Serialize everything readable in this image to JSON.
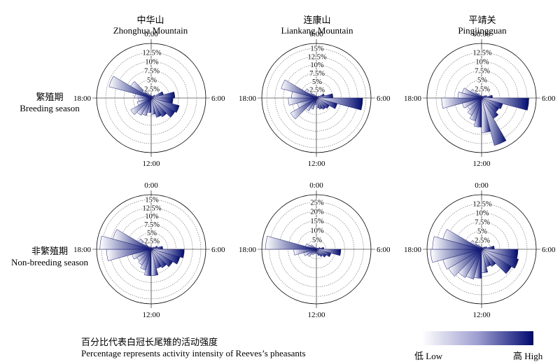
{
  "columns": [
    {
      "cn": "中华山",
      "en": "Zhonghua Mountain"
    },
    {
      "cn": "连康山",
      "en": "Liankang Mountain"
    },
    {
      "cn": "平靖关",
      "en": "Pingjingguan"
    }
  ],
  "rows": [
    {
      "cn": "繁殖期",
      "en": "Breeding season"
    },
    {
      "cn": "非繁殖期",
      "en": "Non-breeding season"
    }
  ],
  "caption": {
    "cn": "百分比代表白冠长尾雉的活动强度",
    "en": "Percentage represents activity intensity of Reeves’s pheasants"
  },
  "legend": {
    "low": "低 Low",
    "high": "高 High",
    "colors": [
      "#ffffff",
      "#000a6e"
    ]
  },
  "chart_data": [
    {
      "type": "polar-bar",
      "panel": "Zhonghua Mountain – Breeding season",
      "hour_labels": {
        "top": "0:00",
        "right": "6:00",
        "bottom": "12:00",
        "left": "18:00"
      },
      "rmax": 15,
      "ring_labels": [
        "2.5%",
        "5%",
        "7.5%",
        "10%",
        "12.5%"
      ],
      "hours": [
        0,
        1,
        2,
        3,
        4,
        5,
        6,
        7,
        8,
        9,
        10,
        11,
        12,
        13,
        14,
        15,
        16,
        17,
        18,
        19,
        20,
        21,
        22,
        23
      ],
      "values": [
        0.6,
        0.5,
        0.7,
        1.2,
        3.5,
        6.5,
        6.0,
        8.0,
        7.5,
        6.0,
        5.5,
        4.5,
        4.0,
        5.0,
        5.5,
        6.5,
        4.0,
        3.5,
        4.5,
        12.0,
        6.5,
        2.0,
        1.0,
        0.7
      ]
    },
    {
      "type": "polar-bar",
      "panel": "Liankang Mountain – Breeding season",
      "hour_labels": {
        "top": "0:00",
        "right": "6:00",
        "bottom": "12:00",
        "left": "18:00"
      },
      "rmax": 16.5,
      "ring_labels": [
        "2.5%",
        "5%",
        "7.5%",
        "10%",
        "12.5%",
        "15%"
      ],
      "hours": [
        0,
        1,
        2,
        3,
        4,
        5,
        6,
        7,
        8,
        9,
        10,
        11,
        12,
        13,
        14,
        15,
        16,
        17,
        18,
        19,
        20,
        21,
        22,
        23
      ],
      "values": [
        0.5,
        0.5,
        0.6,
        1.0,
        2.5,
        5.0,
        14.0,
        6.5,
        4.5,
        4.0,
        3.5,
        3.0,
        2.0,
        3.5,
        4.5,
        9.0,
        6.0,
        8.5,
        7.5,
        11.0,
        4.0,
        1.5,
        0.8,
        0.5
      ]
    },
    {
      "type": "polar-bar",
      "panel": "Pingjingguan – Breeding season",
      "hour_labels": {
        "top": "00:00",
        "right": "6:00",
        "bottom": "12:00",
        "left": "18:00"
      },
      "rmax": 15,
      "ring_labels": [
        "2.5%",
        "5%",
        "7.5%",
        "10%",
        "12.5%"
      ],
      "hours": [
        0,
        1,
        2,
        3,
        4,
        5,
        6,
        7,
        8,
        9,
        10,
        11,
        12,
        13,
        14,
        15,
        16,
        17,
        18,
        19,
        20,
        21,
        22,
        23
      ],
      "values": [
        0.5,
        0.5,
        0.6,
        1.0,
        1.5,
        3.0,
        13.0,
        6.0,
        5.5,
        6.5,
        13.5,
        9.5,
        8.0,
        6.5,
        5.5,
        4.5,
        5.5,
        11.0,
        6.5,
        5.5,
        3.5,
        1.5,
        0.8,
        0.5
      ]
    },
    {
      "type": "polar-bar",
      "panel": "Zhonghua Mountain – Non-breeding season",
      "hour_labels": {
        "top": "0:00",
        "right": "6:00",
        "bottom": "12:00",
        "left": "18:00"
      },
      "rmax": 16.5,
      "ring_labels": [
        "2.5%",
        "5%",
        "7.5%",
        "10%",
        "12.5%",
        "15%"
      ],
      "hours": [
        0,
        1,
        2,
        3,
        4,
        5,
        6,
        7,
        8,
        9,
        10,
        11,
        12,
        13,
        14,
        15,
        16,
        17,
        18,
        19,
        20,
        21,
        22,
        23
      ],
      "values": [
        0.5,
        0.5,
        0.6,
        1.0,
        2.0,
        3.5,
        10.0,
        9.0,
        7.5,
        6.5,
        6.0,
        8.0,
        8.0,
        6.5,
        5.5,
        5.0,
        6.0,
        13.5,
        15.5,
        12.0,
        4.5,
        1.0,
        0.7,
        0.5
      ]
    },
    {
      "type": "polar-bar",
      "panel": "Liankang Mountain – Non-breeding season",
      "hour_labels": {
        "top": "0:00",
        "right": "6:00",
        "bottom": "12:00",
        "left": "18:00"
      },
      "rmax": 29,
      "ring_labels": [
        "5%",
        "10%",
        "15%",
        "20%",
        "25%"
      ],
      "hours": [
        0,
        1,
        2,
        3,
        4,
        5,
        6,
        7,
        8,
        9,
        10,
        11,
        12,
        13,
        14,
        15,
        16,
        17,
        18,
        19,
        20,
        21,
        22,
        23
      ],
      "values": [
        0.5,
        0.5,
        0.6,
        1.0,
        2.0,
        4.0,
        13.0,
        8.0,
        6.0,
        4.5,
        3.5,
        2.5,
        2.0,
        2.5,
        3.5,
        5.5,
        7.0,
        12.0,
        27.0,
        6.0,
        3.5,
        1.5,
        0.8,
        0.5
      ]
    },
    {
      "type": "polar-bar",
      "panel": "Pingjingguan – Non-breeding season",
      "hour_labels": {
        "top": "0:00",
        "right": "6:00",
        "bottom": "12:00",
        "left": "18:00"
      },
      "rmax": 15,
      "ring_labels": [
        "2.5%",
        "5%",
        "7.5%",
        "10%",
        "12.5%"
      ],
      "hours": [
        0,
        1,
        2,
        3,
        4,
        5,
        6,
        7,
        8,
        9,
        10,
        11,
        12,
        13,
        14,
        15,
        16,
        17,
        18,
        19,
        20,
        21,
        22,
        23
      ],
      "values": [
        0.5,
        0.5,
        0.6,
        1.0,
        1.5,
        3.5,
        10.0,
        10.5,
        9.5,
        5.5,
        5.0,
        6.5,
        8.0,
        8.5,
        9.0,
        10.5,
        11.0,
        14.0,
        13.5,
        11.0,
        3.5,
        1.5,
        0.8,
        0.5
      ]
    }
  ]
}
